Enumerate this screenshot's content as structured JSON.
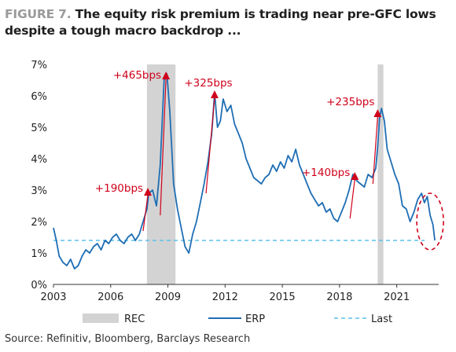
{
  "title": {
    "figure_label": "FIGURE 7.",
    "text": "The equity risk premium is trading near pre-GFC lows despite a tough macro backdrop ..."
  },
  "source": "Source: Refinitiv, Bloomberg, Barclays Research",
  "colors": {
    "erp": "#1f6eb4",
    "last": "#5bc0eb",
    "rec": "#d3d3d3",
    "annotation": "#d0021b"
  },
  "chart_data": {
    "type": "line",
    "xlim": [
      2003,
      2023.2
    ],
    "ylim": [
      0,
      7
    ],
    "x_ticks": [
      "2003",
      "2006",
      "2009",
      "2012",
      "2015",
      "2018",
      "2021"
    ],
    "y_ticks": [
      "0%",
      "1%",
      "2%",
      "3%",
      "4%",
      "5%",
      "6%",
      "7%"
    ],
    "grid": false,
    "legend_position": "bottom",
    "recessions": [
      [
        2007.9,
        2009.4
      ],
      [
        2020.0,
        2020.3
      ]
    ],
    "last_value": 1.4,
    "series": [
      {
        "name": "ERP",
        "x": [
          2003.0,
          2003.15,
          2003.3,
          2003.5,
          2003.7,
          2003.9,
          2004.1,
          2004.3,
          2004.5,
          2004.7,
          2004.9,
          2005.1,
          2005.3,
          2005.5,
          2005.7,
          2005.9,
          2006.1,
          2006.3,
          2006.5,
          2006.7,
          2006.9,
          2007.1,
          2007.3,
          2007.5,
          2007.7,
          2007.9,
          2008.0,
          2008.2,
          2008.4,
          2008.6,
          2008.8,
          2008.95,
          2009.1,
          2009.3,
          2009.5,
          2009.7,
          2009.9,
          2010.1,
          2010.3,
          2010.5,
          2010.7,
          2010.9,
          2011.1,
          2011.3,
          2011.45,
          2011.6,
          2011.75,
          2011.9,
          2012.1,
          2012.3,
          2012.5,
          2012.7,
          2012.9,
          2013.1,
          2013.3,
          2013.5,
          2013.7,
          2013.9,
          2014.1,
          2014.3,
          2014.5,
          2014.7,
          2014.9,
          2015.1,
          2015.3,
          2015.5,
          2015.7,
          2015.9,
          2016.1,
          2016.3,
          2016.5,
          2016.7,
          2016.9,
          2017.1,
          2017.3,
          2017.5,
          2017.7,
          2017.9,
          2018.1,
          2018.3,
          2018.5,
          2018.7,
          2018.9,
          2019.1,
          2019.3,
          2019.5,
          2019.7,
          2019.9,
          2020.0,
          2020.1,
          2020.2,
          2020.35,
          2020.5,
          2020.7,
          2020.9,
          2021.1,
          2021.3,
          2021.5,
          2021.7,
          2021.9,
          2022.1,
          2022.3,
          2022.45,
          2022.6,
          2022.75,
          2022.9,
          2023.0
        ],
        "values": [
          1.8,
          1.4,
          0.9,
          0.7,
          0.6,
          0.8,
          0.5,
          0.6,
          0.9,
          1.1,
          1.0,
          1.2,
          1.3,
          1.1,
          1.4,
          1.3,
          1.5,
          1.6,
          1.4,
          1.3,
          1.5,
          1.6,
          1.4,
          1.6,
          2.0,
          2.4,
          2.9,
          3.0,
          2.5,
          3.8,
          6.5,
          6.7,
          5.5,
          3.2,
          2.4,
          1.8,
          1.2,
          1.0,
          1.6,
          2.0,
          2.6,
          3.2,
          3.9,
          4.8,
          6.1,
          5.0,
          5.2,
          5.9,
          5.5,
          5.7,
          5.1,
          4.8,
          4.5,
          4.0,
          3.7,
          3.4,
          3.3,
          3.2,
          3.4,
          3.5,
          3.8,
          3.6,
          3.9,
          3.7,
          4.1,
          3.9,
          4.3,
          3.8,
          3.5,
          3.2,
          2.9,
          2.7,
          2.5,
          2.6,
          2.3,
          2.4,
          2.1,
          2.0,
          2.3,
          2.6,
          3.0,
          3.5,
          3.3,
          3.2,
          3.1,
          3.5,
          3.4,
          3.7,
          4.4,
          5.3,
          5.6,
          5.2,
          4.3,
          3.9,
          3.5,
          3.2,
          2.5,
          2.4,
          2.0,
          2.3,
          2.7,
          2.9,
          2.6,
          2.8,
          2.2,
          1.9,
          1.4
        ]
      }
    ],
    "annotations": [
      {
        "label": "+190bps",
        "x0": 2007.7,
        "y0": 1.7,
        "x1": 2007.95,
        "y1": 3.0
      },
      {
        "label": "+465bps",
        "x0": 2008.6,
        "y0": 2.2,
        "x1": 2008.9,
        "y1": 6.7
      },
      {
        "label": "+325bps",
        "x0": 2011.0,
        "y0": 2.9,
        "x1": 2011.45,
        "y1": 6.1
      },
      {
        "label": "+140bps",
        "x0": 2018.55,
        "y0": 2.1,
        "x1": 2018.8,
        "y1": 3.5
      },
      {
        "label": "+235bps",
        "x0": 2019.75,
        "y0": 3.2,
        "x1": 2020.0,
        "y1": 5.5
      }
    ],
    "legend": [
      {
        "label": "REC",
        "kind": "rect"
      },
      {
        "label": "ERP",
        "kind": "line"
      },
      {
        "label": "Last",
        "kind": "dash"
      }
    ]
  }
}
